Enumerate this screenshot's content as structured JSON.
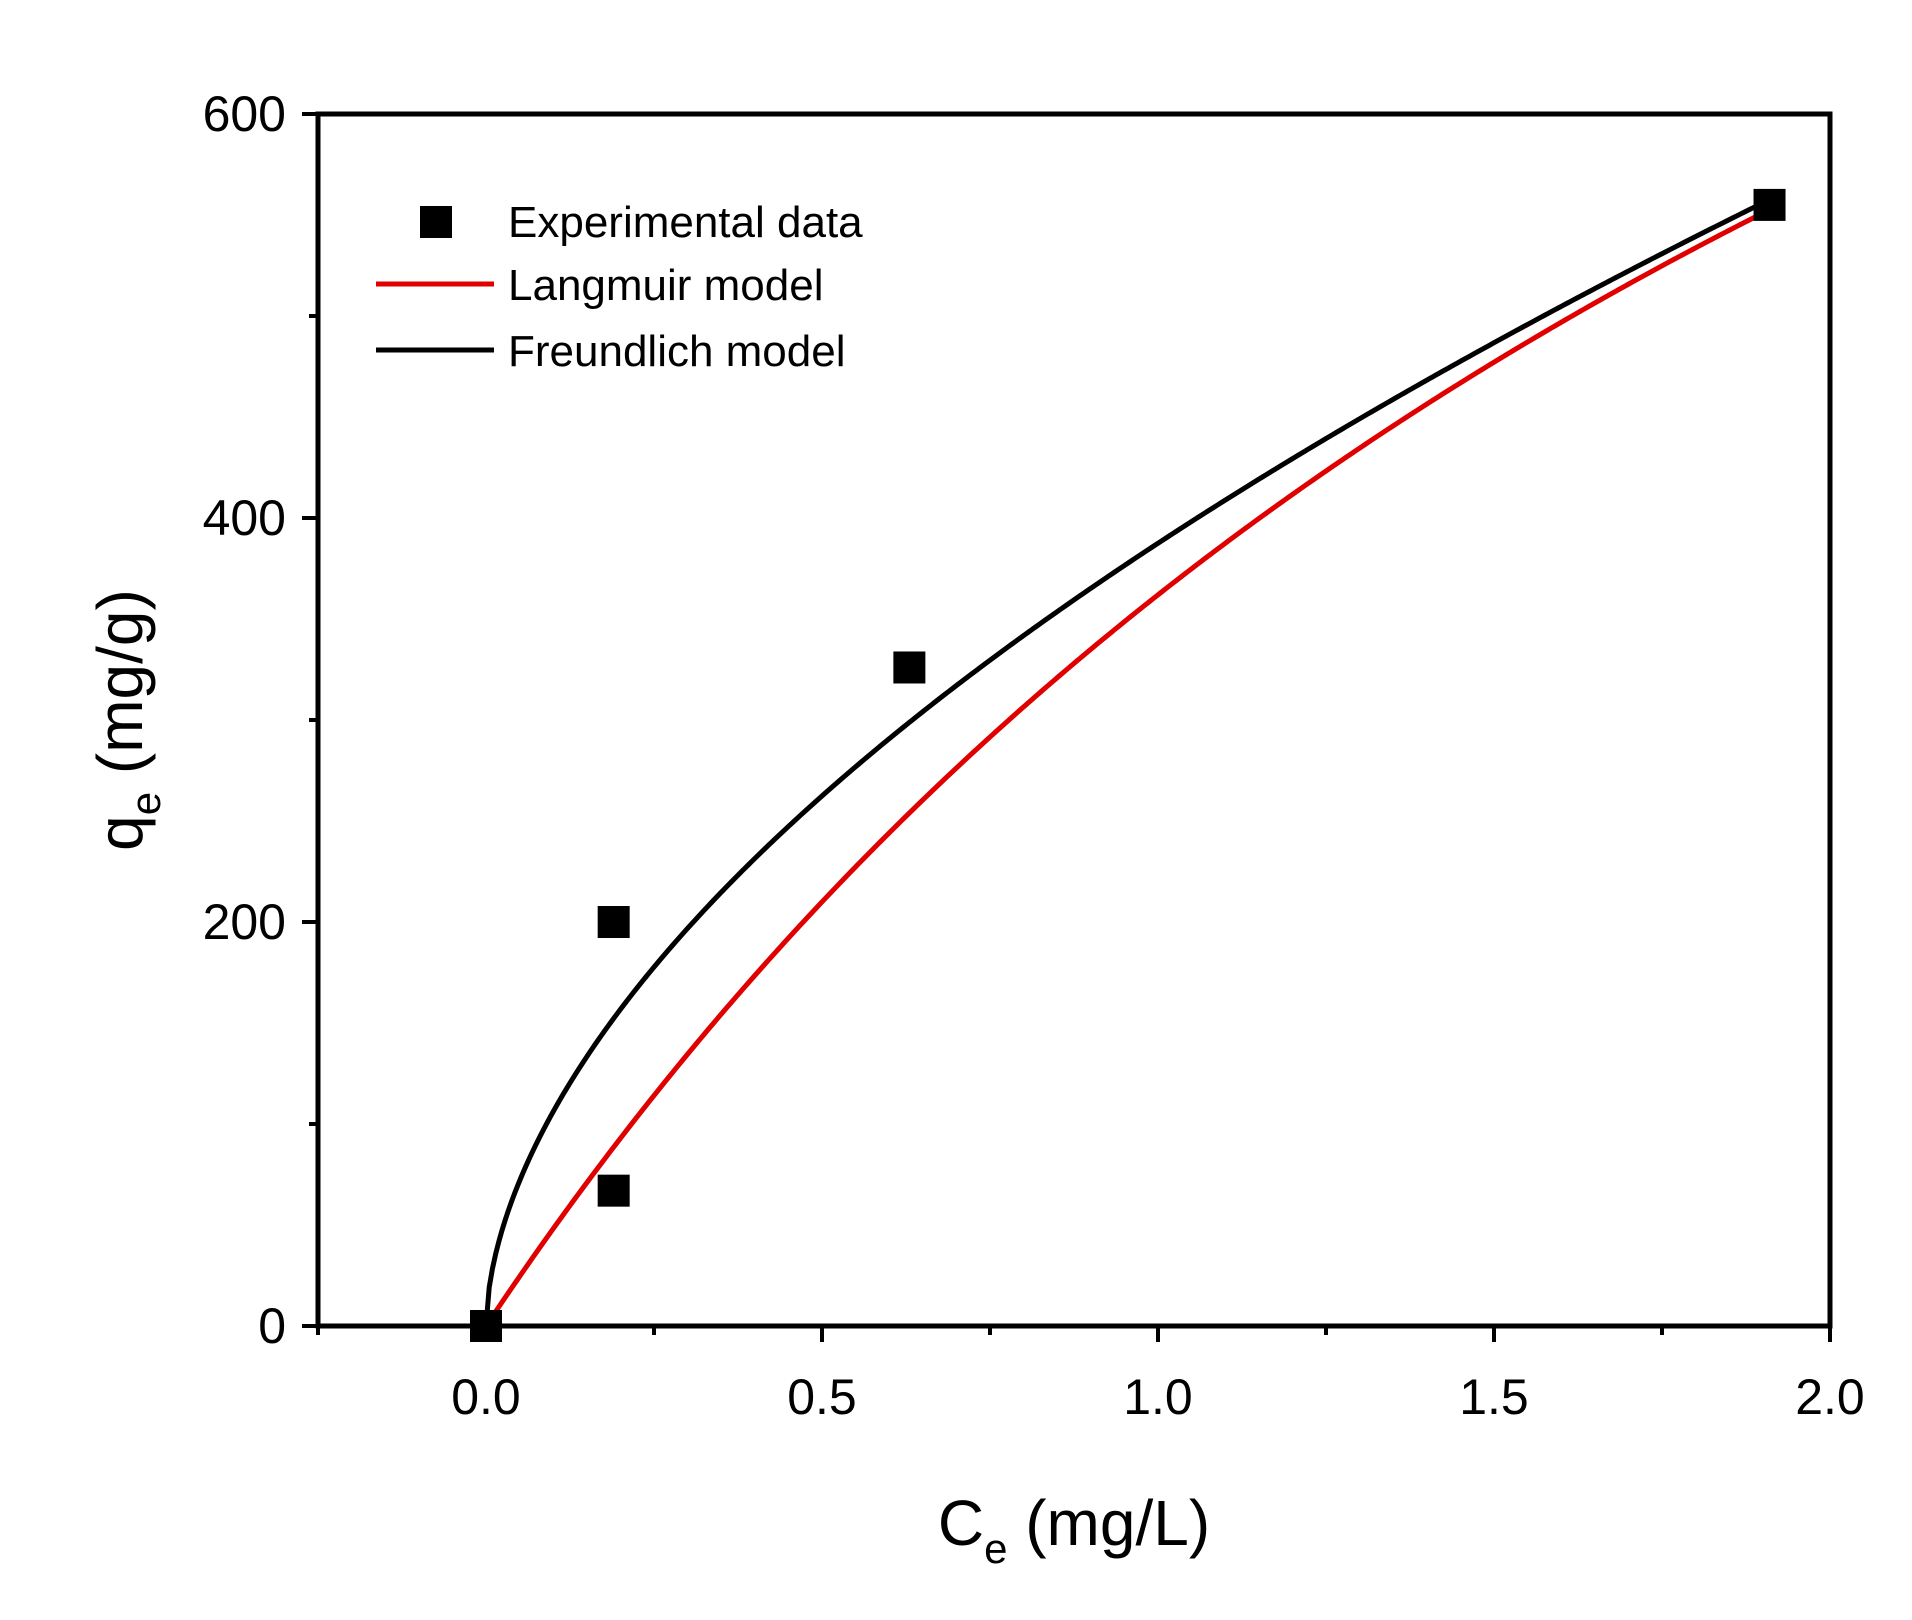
{
  "chart_data": {
    "type": "scatter",
    "title": "",
    "xlabel": {
      "base": "C",
      "sub": "e",
      "rest": " (mg/L)"
    },
    "ylabel": {
      "base": "q",
      "sub": "e",
      "rest": " (mg/g)"
    },
    "xlim": [
      -0.25,
      2.0
    ],
    "ylim": [
      0,
      600
    ],
    "xticks": [
      0.0,
      0.5,
      1.0,
      1.5,
      2.0
    ],
    "xtick_labels": [
      "0.0",
      "0.5",
      "1.0",
      "1.5",
      "2.0"
    ],
    "xminor": [
      -0.25,
      0.25,
      0.75,
      1.25,
      1.75
    ],
    "yticks": [
      0,
      200,
      400,
      600
    ],
    "ytick_labels": [
      "0",
      "200",
      "400",
      "600"
    ],
    "yminor": [
      100,
      300,
      500
    ],
    "grid": false,
    "legend_position": "top-left",
    "series": [
      {
        "name": "Experimental data",
        "kind": "marker",
        "color": "#000000",
        "points": [
          {
            "x": 0.0,
            "y": 0
          },
          {
            "x": 0.19,
            "y": 200
          },
          {
            "x": 0.19,
            "y": 67
          },
          {
            "x": 0.63,
            "y": 326
          },
          {
            "x": 1.91,
            "y": 555
          }
        ]
      },
      {
        "name": "Langmuir model",
        "kind": "line",
        "color": "#e00000",
        "model": "langmuir",
        "params": {
          "qmax": 1312,
          "KL": 0.381
        },
        "x_range": [
          0.0,
          1.91
        ]
      },
      {
        "name": "Freundlich model",
        "kind": "line",
        "color": "#000000",
        "model": "freundlich",
        "params": {
          "KF": 387.5,
          "n": 1.778
        },
        "x_range": [
          0.0,
          1.91
        ]
      }
    ]
  }
}
